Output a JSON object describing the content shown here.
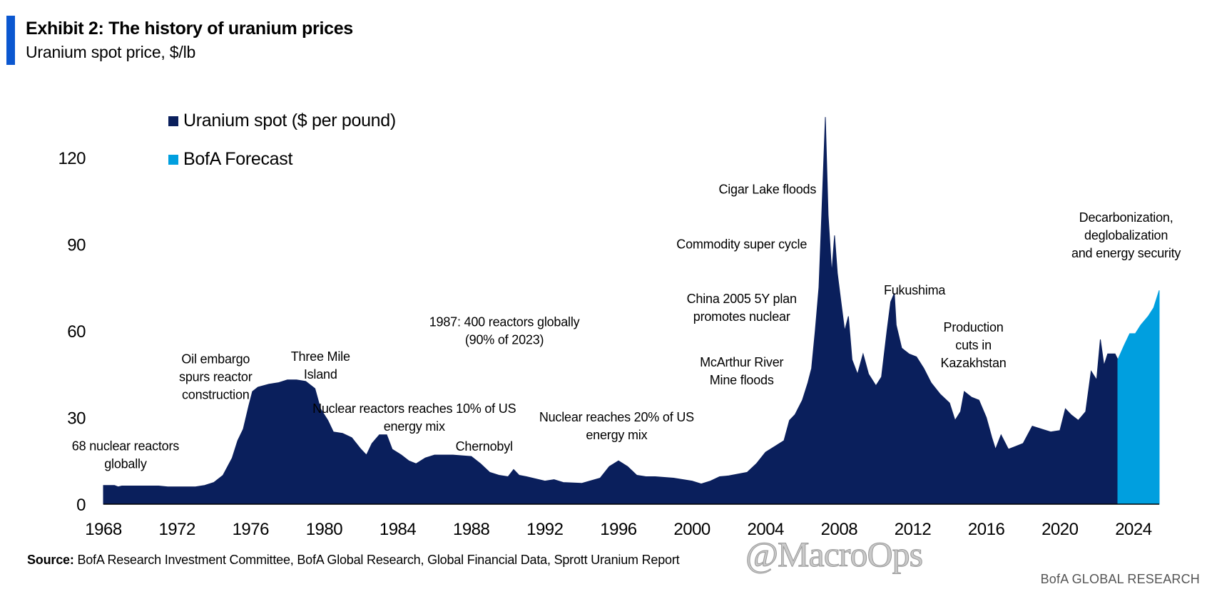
{
  "header": {
    "title": "Exhibit 2: The history of uranium prices",
    "subtitle": "Uranium spot price, $/lb"
  },
  "source": {
    "label": "Source:",
    "text": "BofA Research Investment Committee, BofA Global Research, Global Financial Data, Sprott Uranium Report"
  },
  "footer": "BofA GLOBAL RESEARCH",
  "watermark": "@MacroOps",
  "colors": {
    "spot": "#0a1f5c",
    "forecast": "#009fdf",
    "accent": "#0b57d0"
  },
  "chart_data": {
    "type": "area",
    "xlim": [
      1968,
      2025.4
    ],
    "ylim": [
      0,
      135
    ],
    "y_ticks": [
      0,
      30,
      60,
      90,
      120
    ],
    "x_ticks": [
      1968,
      1972,
      1976,
      1980,
      1984,
      1988,
      1992,
      1996,
      2000,
      2004,
      2008,
      2012,
      2016,
      2020,
      2024
    ],
    "grid": false,
    "legend_position": "top-left",
    "series": [
      {
        "name": "Uranium spot ($ per pound)",
        "points": [
          [
            1968,
            6.5
          ],
          [
            1968.6,
            6.5
          ],
          [
            1968.8,
            6.0
          ],
          [
            1969,
            6.3
          ],
          [
            1971,
            6.3
          ],
          [
            1971.5,
            6.0
          ],
          [
            1973,
            6.0
          ],
          [
            1973.5,
            6.5
          ],
          [
            1974,
            7.5
          ],
          [
            1974.5,
            10
          ],
          [
            1975,
            16
          ],
          [
            1975.3,
            22
          ],
          [
            1975.6,
            26
          ],
          [
            1975.9,
            34
          ],
          [
            1976.1,
            39
          ],
          [
            1976.4,
            40.5
          ],
          [
            1977,
            41.5
          ],
          [
            1977.5,
            42
          ],
          [
            1978,
            43
          ],
          [
            1978.5,
            43
          ],
          [
            1979,
            42.5
          ],
          [
            1979.5,
            40
          ],
          [
            1979.8,
            33
          ],
          [
            1980.2,
            29
          ],
          [
            1980.5,
            25
          ],
          [
            1981,
            24.5
          ],
          [
            1981.5,
            23
          ],
          [
            1982,
            19
          ],
          [
            1982.3,
            17
          ],
          [
            1982.6,
            21
          ],
          [
            1983,
            24
          ],
          [
            1983.4,
            24
          ],
          [
            1983.7,
            19
          ],
          [
            1984.2,
            17
          ],
          [
            1984.6,
            15
          ],
          [
            1985,
            14
          ],
          [
            1985.5,
            16
          ],
          [
            1986,
            17
          ],
          [
            1987,
            17
          ],
          [
            1988,
            16.5
          ],
          [
            1988.5,
            14
          ],
          [
            1989,
            11
          ],
          [
            1989.5,
            10
          ],
          [
            1990,
            9.5
          ],
          [
            1990.3,
            12
          ],
          [
            1990.6,
            10
          ],
          [
            1991,
            9.5
          ],
          [
            1992,
            8
          ],
          [
            1992.5,
            8.5
          ],
          [
            1993,
            7.5
          ],
          [
            1994,
            7.2
          ],
          [
            1995,
            9
          ],
          [
            1995.5,
            13
          ],
          [
            1996,
            15
          ],
          [
            1996.5,
            13
          ],
          [
            1997,
            10
          ],
          [
            1997.5,
            9.5
          ],
          [
            1998,
            9.5
          ],
          [
            1999,
            9
          ],
          [
            2000,
            8
          ],
          [
            2000.5,
            7
          ],
          [
            2001,
            8
          ],
          [
            2001.5,
            9.5
          ],
          [
            2002,
            9.8
          ],
          [
            2003,
            11
          ],
          [
            2003.5,
            14
          ],
          [
            2004,
            18
          ],
          [
            2004.5,
            20
          ],
          [
            2005,
            22
          ],
          [
            2005.3,
            29
          ],
          [
            2005.6,
            31
          ],
          [
            2006,
            36
          ],
          [
            2006.3,
            42
          ],
          [
            2006.5,
            47
          ],
          [
            2006.7,
            60
          ],
          [
            2006.9,
            75
          ],
          [
            2007.05,
            100
          ],
          [
            2007.25,
            134
          ],
          [
            2007.4,
            100
          ],
          [
            2007.6,
            80
          ],
          [
            2007.75,
            93
          ],
          [
            2007.9,
            80
          ],
          [
            2008.1,
            70
          ],
          [
            2008.3,
            60
          ],
          [
            2008.5,
            65
          ],
          [
            2008.7,
            50
          ],
          [
            2009,
            45
          ],
          [
            2009.3,
            52
          ],
          [
            2009.6,
            45
          ],
          [
            2010,
            41
          ],
          [
            2010.3,
            44
          ],
          [
            2010.6,
            60
          ],
          [
            2010.8,
            70
          ],
          [
            2011,
            73
          ],
          [
            2011.1,
            62
          ],
          [
            2011.4,
            54
          ],
          [
            2011.8,
            52
          ],
          [
            2012.2,
            51
          ],
          [
            2012.6,
            47
          ],
          [
            2013,
            42
          ],
          [
            2013.5,
            38
          ],
          [
            2014,
            35
          ],
          [
            2014.3,
            29
          ],
          [
            2014.6,
            32
          ],
          [
            2014.8,
            39
          ],
          [
            2015.2,
            37
          ],
          [
            2015.6,
            36
          ],
          [
            2016,
            30
          ],
          [
            2016.3,
            23
          ],
          [
            2016.5,
            19
          ],
          [
            2016.8,
            24
          ],
          [
            2017.2,
            19
          ],
          [
            2017.6,
            20
          ],
          [
            2018,
            21
          ],
          [
            2018.5,
            27
          ],
          [
            2019,
            26
          ],
          [
            2019.5,
            25
          ],
          [
            2020,
            25.5
          ],
          [
            2020.3,
            33
          ],
          [
            2020.6,
            31
          ],
          [
            2021,
            29
          ],
          [
            2021.4,
            32
          ],
          [
            2021.7,
            46
          ],
          [
            2022,
            43
          ],
          [
            2022.2,
            57
          ],
          [
            2022.4,
            48
          ],
          [
            2022.6,
            52
          ],
          [
            2023,
            52
          ],
          [
            2023.15,
            50
          ]
        ]
      },
      {
        "name": "BofA Forecast",
        "points": [
          [
            2023.15,
            50
          ],
          [
            2023.5,
            55
          ],
          [
            2023.8,
            59
          ],
          [
            2024.1,
            59
          ],
          [
            2024.4,
            62
          ],
          [
            2024.8,
            65
          ],
          [
            2025.1,
            68
          ],
          [
            2025.4,
            74
          ]
        ]
      }
    ],
    "annotations": [
      {
        "lines": [
          "68 nuclear reactors",
          "globally"
        ],
        "x": 1969.2,
        "y": 17
      },
      {
        "lines": [
          "Oil embargo",
          "spurs reactor",
          "construction"
        ],
        "x": 1974.1,
        "y": 44
      },
      {
        "lines": [
          "Three Mile",
          "Island"
        ],
        "x": 1979.8,
        "y": 48
      },
      {
        "lines": [
          "Nuclear reactors reaches 10% of US",
          "energy mix"
        ],
        "x": 1984.9,
        "y": 30
      },
      {
        "lines": [
          "1987:  400 reactors globally",
          "(90%  of 2023)"
        ],
        "x": 1989.8,
        "y": 60
      },
      {
        "lines": [
          "Chernobyl"
        ],
        "x": 1988.7,
        "y": 20
      },
      {
        "lines": [
          "Nuclear reaches 20%  of US",
          "energy mix"
        ],
        "x": 1995.9,
        "y": 27
      },
      {
        "lines": [
          "McArthur River",
          "Mine floods"
        ],
        "x": 2002.7,
        "y": 46
      },
      {
        "lines": [
          "China 2005  5Y plan",
          "promotes nuclear"
        ],
        "x": 2002.7,
        "y": 68
      },
      {
        "lines": [
          "Commodity  super cycle"
        ],
        "x": 2002.7,
        "y": 90
      },
      {
        "lines": [
          "Cigar Lake floods"
        ],
        "x": 2004.1,
        "y": 109
      },
      {
        "lines": [
          "Fukushima"
        ],
        "x": 2012.1,
        "y": 74
      },
      {
        "lines": [
          "Production",
          "cuts in",
          "Kazakhstan"
        ],
        "x": 2015.3,
        "y": 55
      },
      {
        "lines": [
          "Decarbonization,",
          "deglobalization",
          "and energy security"
        ],
        "x": 2023.6,
        "y": 93
      }
    ]
  }
}
